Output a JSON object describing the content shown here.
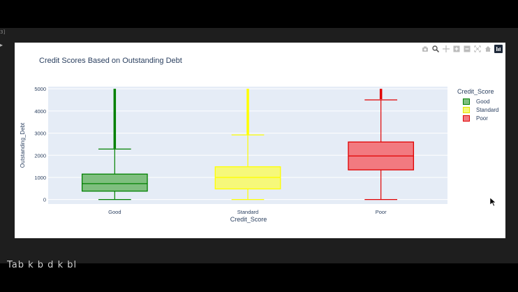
{
  "editor": {
    "gutter_text": "3]",
    "gutter_arrow": "▸",
    "below_text": "Tab k  b  d  k  bl"
  },
  "modebar": {
    "icons": [
      "camera-icon",
      "zoom-icon",
      "pan-icon",
      "zoom-in-icon",
      "zoom-out-icon",
      "autoscale-icon",
      "home-icon",
      "plotly-logo-icon"
    ]
  },
  "chart_data": {
    "type": "box",
    "title": "Credit Scores Based on Outstanding Debt",
    "xlabel": "Credit_Score",
    "ylabel": "Outstanding_Debt",
    "ylim": [
      -200,
      5100
    ],
    "yticks": [
      0,
      1000,
      2000,
      3000,
      4000,
      5000
    ],
    "grid": true,
    "legend_title": "Credit_Score",
    "legend_position": "top-right",
    "categories": [
      "Good",
      "Standard",
      "Poor"
    ],
    "series": [
      {
        "name": "Good",
        "color": "#008000",
        "fill": "#7fbf7f",
        "min": 0,
        "q1": 380,
        "median": 720,
        "q3": 1150,
        "upperfence": 2280,
        "outliers_from": 2300,
        "outliers_to": 5000
      },
      {
        "name": "Standard",
        "color": "#ffff00",
        "fill": "#f6f87a",
        "min": 0,
        "q1": 480,
        "median": 1000,
        "q3": 1480,
        "upperfence": 2920,
        "outliers_from": 2940,
        "outliers_to": 5000
      },
      {
        "name": "Poor",
        "color": "#e00000",
        "fill": "#f27a80",
        "min": 0,
        "q1": 1340,
        "median": 1970,
        "q3": 2600,
        "upperfence": 4500,
        "outliers_from": 4530,
        "outliers_to": 5000
      }
    ]
  }
}
